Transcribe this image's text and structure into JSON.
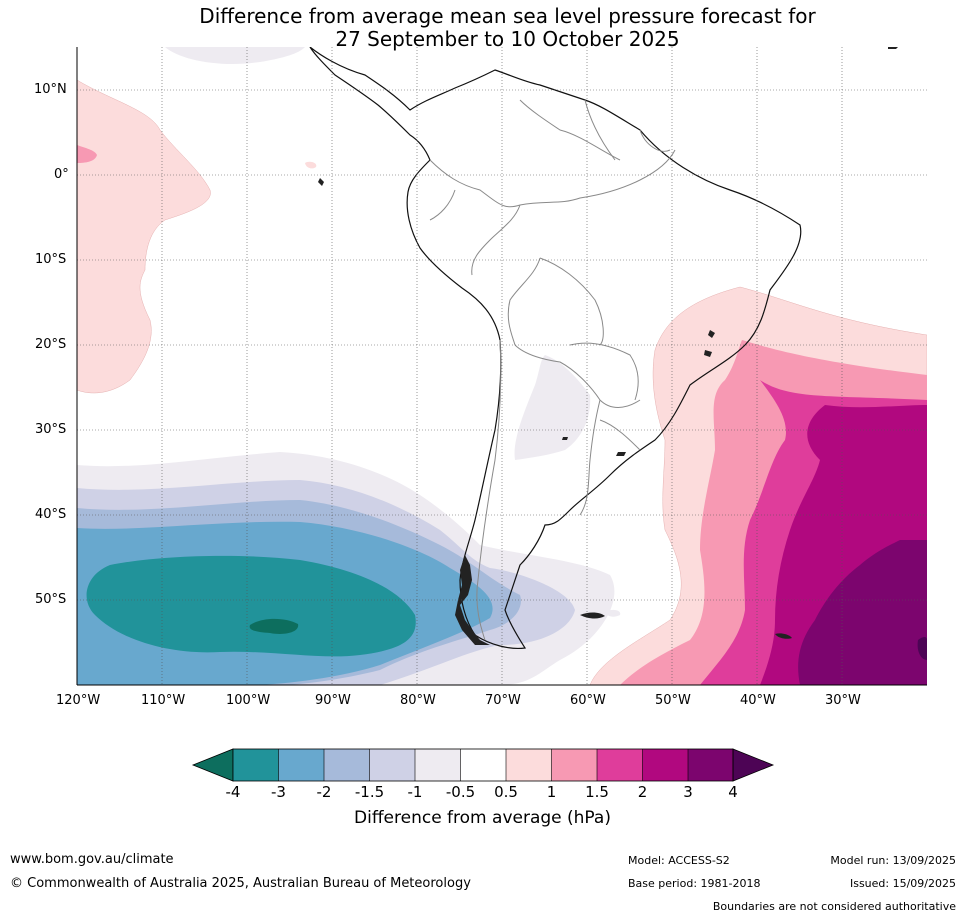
{
  "title": {
    "line1": "Difference from average mean sea level pressure forecast for",
    "line2": "27 September to 10 October 2025"
  },
  "latitude_labels": [
    "10°N",
    "0°",
    "10°S",
    "20°S",
    "30°S",
    "40°S",
    "50°S"
  ],
  "longitude_labels": [
    "120°W",
    "110°W",
    "100°W",
    "90°W",
    "80°W",
    "70°W",
    "60°W",
    "50°W",
    "40°W",
    "30°W"
  ],
  "colorbar": {
    "ticks": [
      "-4",
      "-3",
      "-2",
      "-1.5",
      "-1",
      "-0.5",
      "0.5",
      "1",
      "1.5",
      "2",
      "3",
      "4"
    ],
    "colors": [
      "#0d6e5e",
      "#21939a",
      "#68a8ce",
      "#a6bada",
      "#cfd1e6",
      "#eeebf1",
      "#ffffff",
      "#fcdcdc",
      "#f799b3",
      "#df3d9b",
      "#b1087f",
      "#7c056e",
      "#4d0455"
    ],
    "label": "Difference from average (hPa)"
  },
  "footer": {
    "url": "www.bom.gov.au/climate",
    "copyright": "© Commonwealth of Australia 2025, Australian Bureau of Meteorology",
    "model": "Model: ACCESS-S2",
    "base_period": "Base period: 1981-2018",
    "model_run": "Model run: 13/09/2025",
    "issued": "Issued: 15/09/2025",
    "boundaries_note": "Boundaries are not considered authoritative"
  }
}
